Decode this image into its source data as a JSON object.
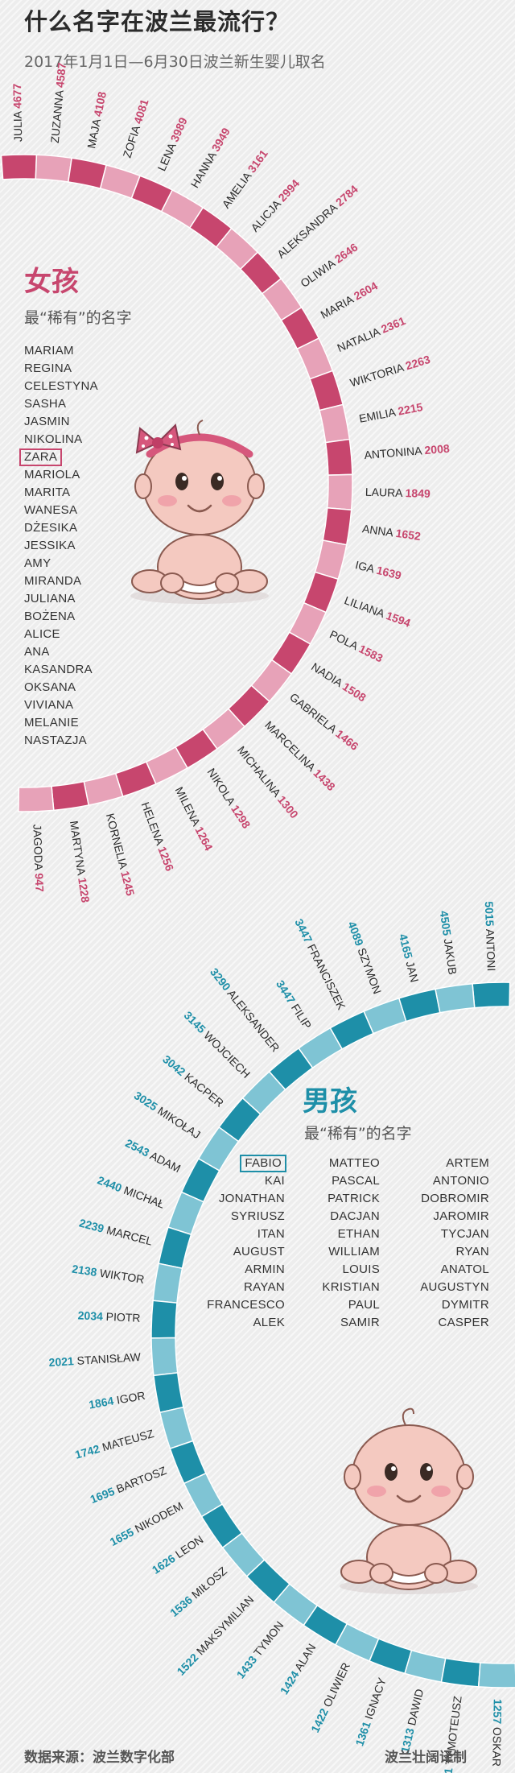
{
  "title": "什么名字在波兰最流行？",
  "subtitle": "2017年1月1日—6月30日波兰新生婴儿取名",
  "colors": {
    "girl": "#c7466e",
    "girl_light": "#e7a2b8",
    "boy": "#1e8fa8",
    "boy_light": "#7fc4d4"
  },
  "girls": {
    "label": "女孩",
    "rare_label": "最“稀有”的名字",
    "rare_names": [
      "MARIAM",
      "REGINA",
      "CELESTYNA",
      "SASHA",
      "JASMIN",
      "NIKOLINA",
      "ZARA",
      "MARIOLA",
      "MARITA",
      "WANESA",
      "DŻESIKA",
      "JESSIKA",
      "AMY",
      "MIRANDA",
      "JULIANA",
      "BOŻENA",
      "ALICE",
      "ANA",
      "KASANDRA",
      "OKSANA",
      "VIVIANA",
      "MELANIE",
      "NASTAZJA"
    ],
    "highlighted": "ZARA",
    "icon": "baby-girl-icon"
  },
  "boys": {
    "label": "男孩",
    "rare_label": "最“稀有”的名字",
    "rare_columns": [
      [
        "FABIO",
        "KAI",
        "JONATHAN",
        "SYRIUSZ",
        "ITAN",
        "AUGUST",
        "ARMIN",
        "RAYAN",
        "FRANCESCO",
        "ALEK"
      ],
      [
        "MATTEO",
        "PASCAL",
        "PATRICK",
        "DACJAN",
        "ETHAN",
        "WILLIAM",
        "LOUIS",
        "KRISTIAN",
        "PAUL",
        "SAMIR"
      ],
      [
        "ARTEM",
        "ANTONIO",
        "DOBROMIR",
        "JAROMIR",
        "TYCJAN",
        "RYAN",
        "ANATOL",
        "AUGUSTYN",
        "DYMITR",
        "CASPER"
      ]
    ],
    "highlighted": "FABIO",
    "icon": "baby-boy-icon"
  },
  "chart_data": [
    {
      "type": "bar",
      "series_name": "girls",
      "categories": [
        "JULIA",
        "ZUZANNA",
        "MAJA",
        "ZOFIA",
        "LENA",
        "HANNA",
        "AMELIA",
        "ALICJA",
        "ALEKSANDRA",
        "OLIWIA",
        "MARIA",
        "NATALIA",
        "WIKTORIA",
        "EMILIA",
        "ANTONINA",
        "LAURA",
        "ANNA",
        "IGA",
        "LILIANA",
        "POLA",
        "NADIA",
        "GABRIELA",
        "MARCELINA",
        "MICHALINA",
        "NIKOLA",
        "MILENA",
        "HELENA",
        "KORNELIA",
        "MARTYNA",
        "JAGODA"
      ],
      "values": [
        4677,
        4587,
        4108,
        4081,
        3989,
        3949,
        3161,
        2994,
        2784,
        2646,
        2604,
        2361,
        2263,
        2215,
        2008,
        1849,
        1652,
        1639,
        1594,
        1583,
        1508,
        1466,
        1438,
        1300,
        1298,
        1264,
        1256,
        1245,
        1228,
        947
      ]
    },
    {
      "type": "bar",
      "series_name": "boys",
      "categories": [
        "ANTONI",
        "JAKUB",
        "JAN",
        "SZYMON",
        "FRANCISZEK",
        "FILIP",
        "ALEKSANDER",
        "WOJCIECH",
        "KACPER",
        "MIKOŁAJ",
        "ADAM",
        "MICHAŁ",
        "MARCEL",
        "WIKTOR",
        "PIOTR",
        "STANISŁAW",
        "IGOR",
        "MATEUSZ",
        "BARTOSZ",
        "NIKODEM",
        "LEON",
        "MIŁOSZ",
        "MAKSYMILIAN",
        "TYMON",
        "ALAN",
        "OLIWIER",
        "IGNACY",
        "DAWID",
        "TYMOTEUSZ",
        "OSKAR"
      ],
      "values": [
        5015,
        4505,
        4165,
        4089,
        3447,
        3447,
        3290,
        3145,
        3042,
        3025,
        2543,
        2440,
        2239,
        2138,
        2034,
        2021,
        1864,
        1742,
        1695,
        1655,
        1626,
        1536,
        1522,
        1433,
        1424,
        1422,
        1361,
        1313,
        1281,
        1257
      ]
    }
  ],
  "footer": {
    "source": "数据来源：波兰数字化部",
    "credit": "波兰壮阔译制"
  }
}
